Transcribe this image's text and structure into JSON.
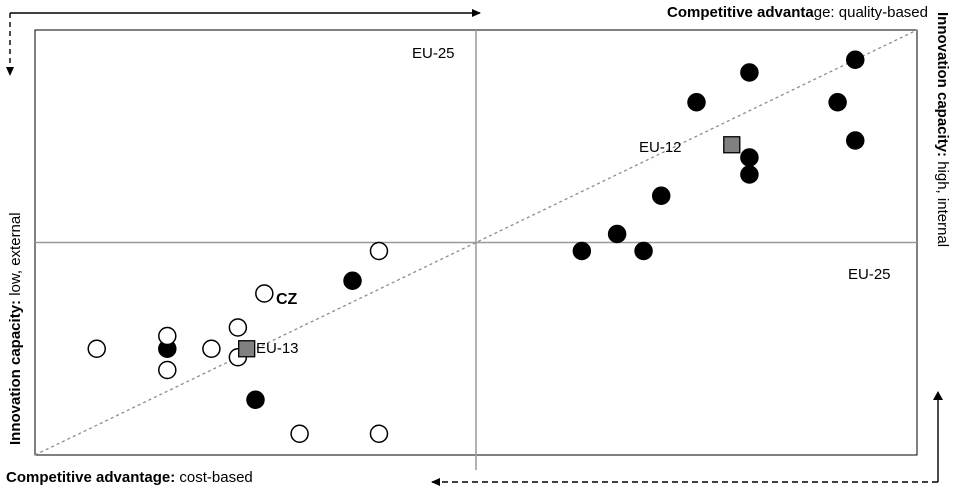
{
  "chart_data": {
    "type": "scatter",
    "axis_labels": {
      "top_bold": "Competitive advanta",
      "top_normal": "ge: quality-based",
      "bottom_bold": "Competitive advantage:",
      "bottom_normal": " cost-based",
      "left_bold": "Innovation capacity:",
      "left_normal": " low, external",
      "right_bold": "Innovation capacity:",
      "right_normal": " high, internal"
    },
    "reference_labels": {
      "vertical": "EU-25",
      "horizontal": "EU-25"
    },
    "xlim": [
      0,
      100
    ],
    "ylim": [
      0,
      100
    ],
    "crosshair": {
      "x": 50,
      "y": 50
    },
    "trend_line": [
      [
        0,
        0
      ],
      [
        100,
        100
      ]
    ],
    "series": [
      {
        "marker": "filled-circle",
        "points": [
          [
            93,
            93
          ],
          [
            81,
            90
          ],
          [
            91,
            83
          ],
          [
            75,
            83
          ],
          [
            93,
            74
          ],
          [
            81,
            70
          ],
          [
            81,
            66
          ],
          [
            71,
            61
          ],
          [
            66,
            52
          ],
          [
            62,
            48
          ],
          [
            69,
            48
          ],
          [
            36,
            41
          ],
          [
            15,
            25
          ],
          [
            25,
            13
          ]
        ]
      },
      {
        "marker": "open-circle",
        "points": [
          [
            39,
            48
          ],
          [
            26,
            38
          ],
          [
            23,
            30
          ],
          [
            15,
            28
          ],
          [
            7,
            25
          ],
          [
            20,
            25
          ],
          [
            23,
            23
          ],
          [
            15,
            20
          ],
          [
            30,
            5
          ],
          [
            39,
            5
          ]
        ]
      },
      {
        "marker": "grey-square",
        "points": [
          [
            79,
            73
          ],
          [
            24,
            25
          ]
        ]
      }
    ],
    "annotations": [
      {
        "text": "EU-12",
        "x": 79,
        "y": 73
      },
      {
        "text": "EU-13",
        "x": 24,
        "y": 25
      },
      {
        "text": "CZ",
        "x": 26,
        "y": 38
      }
    ]
  }
}
